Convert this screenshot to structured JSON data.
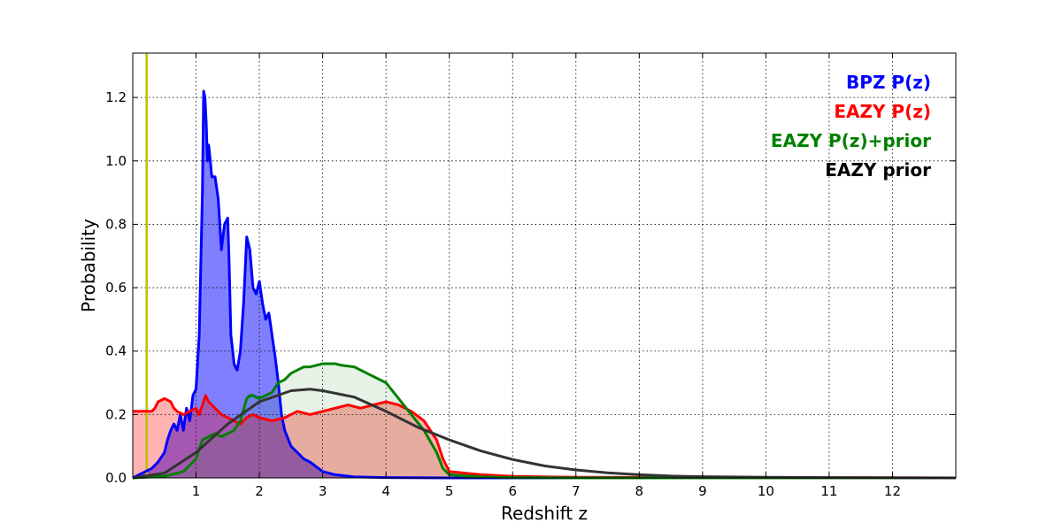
{
  "chart_data": {
    "type": "area",
    "xlabel": "Redshift z",
    "ylabel": "Probability",
    "xlim": [
      0,
      13
    ],
    "ylim": [
      0,
      1.34
    ],
    "x_ticks": [
      "1",
      "2",
      "3",
      "4",
      "5",
      "6",
      "7",
      "8",
      "9",
      "10",
      "11",
      "12"
    ],
    "y_ticks": [
      "0.0",
      "0.2",
      "0.4",
      "0.6",
      "0.8",
      "1.0",
      "1.2"
    ],
    "grid": true,
    "legend_position": "top-right",
    "vertical_marker": {
      "x": 0.22,
      "color": "#bfbf00"
    },
    "series": [
      {
        "name": "BPZ P(z)",
        "color": "#0000ff",
        "fill": "#0000ff",
        "fill_opacity": 0.5,
        "x": [
          0,
          0.2,
          0.3,
          0.4,
          0.5,
          0.55,
          0.6,
          0.65,
          0.7,
          0.75,
          0.8,
          0.85,
          0.9,
          0.95,
          1.0,
          1.05,
          1.1,
          1.12,
          1.14,
          1.16,
          1.18,
          1.2,
          1.25,
          1.3,
          1.35,
          1.4,
          1.45,
          1.5,
          1.52,
          1.55,
          1.58,
          1.6,
          1.62,
          1.65,
          1.7,
          1.75,
          1.8,
          1.85,
          1.9,
          1.95,
          2.0,
          2.05,
          2.1,
          2.15,
          2.2,
          2.25,
          2.3,
          2.35,
          2.4,
          2.5,
          2.6,
          2.7,
          2.8,
          3.0,
          3.2,
          3.5,
          4.0,
          5.0,
          13.0
        ],
        "y": [
          0,
          0.02,
          0.03,
          0.05,
          0.08,
          0.12,
          0.15,
          0.17,
          0.15,
          0.2,
          0.15,
          0.22,
          0.18,
          0.26,
          0.28,
          0.45,
          0.9,
          1.22,
          1.2,
          1.12,
          1.0,
          1.05,
          0.95,
          0.95,
          0.88,
          0.72,
          0.8,
          0.82,
          0.7,
          0.45,
          0.4,
          0.36,
          0.35,
          0.34,
          0.4,
          0.55,
          0.76,
          0.72,
          0.6,
          0.58,
          0.62,
          0.55,
          0.5,
          0.52,
          0.45,
          0.38,
          0.3,
          0.2,
          0.15,
          0.1,
          0.08,
          0.06,
          0.05,
          0.02,
          0.01,
          0.003,
          0.001,
          0,
          0
        ]
      },
      {
        "name": "EAZY P(z)",
        "color": "#ff0000",
        "fill": "#ff0000",
        "fill_opacity": 0.3,
        "x": [
          0,
          0.2,
          0.3,
          0.35,
          0.4,
          0.5,
          0.6,
          0.65,
          0.7,
          0.8,
          0.9,
          1.0,
          1.05,
          1.1,
          1.15,
          1.2,
          1.3,
          1.4,
          1.5,
          1.6,
          1.7,
          1.8,
          1.9,
          2.0,
          2.2,
          2.4,
          2.6,
          2.8,
          3.0,
          3.2,
          3.4,
          3.6,
          3.8,
          4.0,
          4.2,
          4.4,
          4.6,
          4.8,
          4.9,
          5.0,
          5.5,
          6.0,
          7.0,
          13.0
        ],
        "y": [
          0.21,
          0.21,
          0.21,
          0.22,
          0.24,
          0.25,
          0.24,
          0.22,
          0.21,
          0.2,
          0.21,
          0.22,
          0.2,
          0.23,
          0.26,
          0.24,
          0.22,
          0.2,
          0.19,
          0.18,
          0.17,
          0.19,
          0.2,
          0.19,
          0.18,
          0.19,
          0.21,
          0.2,
          0.21,
          0.22,
          0.23,
          0.22,
          0.23,
          0.24,
          0.23,
          0.21,
          0.18,
          0.12,
          0.06,
          0.02,
          0.01,
          0.005,
          0.002,
          0
        ]
      },
      {
        "name": "EAZY P(z)+prior",
        "color": "#008000",
        "fill": "#008000",
        "fill_opacity": 0.1,
        "x": [
          0,
          0.5,
          0.8,
          1.0,
          1.1,
          1.2,
          1.3,
          1.4,
          1.5,
          1.6,
          1.7,
          1.8,
          1.85,
          1.9,
          2.0,
          2.1,
          2.2,
          2.3,
          2.4,
          2.5,
          2.6,
          2.7,
          2.8,
          3.0,
          3.2,
          3.3,
          3.5,
          3.7,
          4.0,
          4.2,
          4.4,
          4.6,
          4.8,
          4.9,
          5.0,
          5.5,
          6.0,
          7.0,
          13.0
        ],
        "y": [
          0.0,
          0.005,
          0.02,
          0.06,
          0.12,
          0.13,
          0.14,
          0.13,
          0.14,
          0.15,
          0.18,
          0.25,
          0.26,
          0.26,
          0.25,
          0.26,
          0.27,
          0.3,
          0.31,
          0.33,
          0.34,
          0.35,
          0.35,
          0.36,
          0.36,
          0.355,
          0.35,
          0.33,
          0.3,
          0.25,
          0.2,
          0.15,
          0.08,
          0.03,
          0.01,
          0.003,
          0.001,
          0,
          0
        ]
      },
      {
        "name": "EAZY prior",
        "color": "#333333",
        "fill": "none",
        "fill_opacity": 0,
        "x": [
          0,
          0.5,
          1.0,
          1.5,
          2.0,
          2.5,
          2.8,
          3.0,
          3.5,
          4.0,
          4.5,
          5.0,
          5.5,
          6.0,
          6.5,
          7.0,
          7.5,
          8.0,
          8.5,
          9.0,
          10.0,
          11.0,
          12.0,
          13.0
        ],
        "y": [
          0,
          0.015,
          0.08,
          0.17,
          0.24,
          0.275,
          0.28,
          0.275,
          0.255,
          0.21,
          0.16,
          0.12,
          0.085,
          0.058,
          0.038,
          0.025,
          0.016,
          0.01,
          0.006,
          0.004,
          0.002,
          0.001,
          0.0005,
          0
        ]
      }
    ]
  }
}
